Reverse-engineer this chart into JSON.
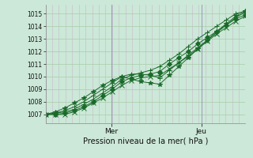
{
  "background_color": "#cce8d8",
  "plot_bg_color": "#cce8d8",
  "grid_color_v": "#c8b8c8",
  "grid_color_h": "#a8cca8",
  "line_color": "#1a6b2a",
  "marker_color": "#1a6b2a",
  "xlabel_text": "Pression niveau de la mer( hPa )",
  "x_tick_labels": [
    "Mer",
    "Jeu"
  ],
  "x_tick_positions": [
    0.33,
    0.78
  ],
  "ylim": [
    1006.3,
    1015.7
  ],
  "yticks": [
    1007,
    1008,
    1009,
    1010,
    1011,
    1012,
    1013,
    1014,
    1015
  ],
  "n_vgrid": 30,
  "series": [
    [
      1007.0,
      1007.1,
      1007.2,
      1007.4,
      1007.8,
      1008.2,
      1008.7,
      1009.2,
      1009.8,
      1010.1,
      1010.3,
      1010.5,
      1010.8,
      1011.3,
      1011.8,
      1012.4,
      1013.0,
      1013.5,
      1014.0,
      1014.5,
      1015.0,
      1015.2
    ],
    [
      1007.0,
      1007.0,
      1007.1,
      1007.3,
      1007.6,
      1008.0,
      1008.5,
      1009.0,
      1009.6,
      1009.9,
      1010.1,
      1010.2,
      1010.4,
      1011.0,
      1011.5,
      1012.0,
      1012.6,
      1013.1,
      1013.6,
      1014.1,
      1014.6,
      1014.9
    ],
    [
      1007.0,
      1007.0,
      1007.0,
      1007.2,
      1007.5,
      1007.9,
      1008.3,
      1008.8,
      1009.3,
      1009.7,
      1009.9,
      1010.0,
      1010.1,
      1010.6,
      1011.1,
      1011.6,
      1012.2,
      1012.8,
      1013.4,
      1013.9,
      1014.4,
      1014.8
    ],
    [
      1007.0,
      1007.1,
      1007.3,
      1007.6,
      1008.0,
      1008.5,
      1009.0,
      1009.5,
      1010.0,
      1010.2,
      1010.2,
      1010.1,
      1009.9,
      1010.5,
      1011.1,
      1011.7,
      1012.3,
      1012.9,
      1013.5,
      1014.1,
      1014.7,
      1015.1
    ],
    [
      1007.0,
      1007.2,
      1007.5,
      1007.9,
      1008.3,
      1008.8,
      1009.3,
      1009.7,
      1010.0,
      1009.8,
      1009.6,
      1009.5,
      1009.4,
      1010.1,
      1010.8,
      1011.5,
      1012.2,
      1012.9,
      1013.6,
      1014.2,
      1014.8,
      1015.2
    ]
  ]
}
